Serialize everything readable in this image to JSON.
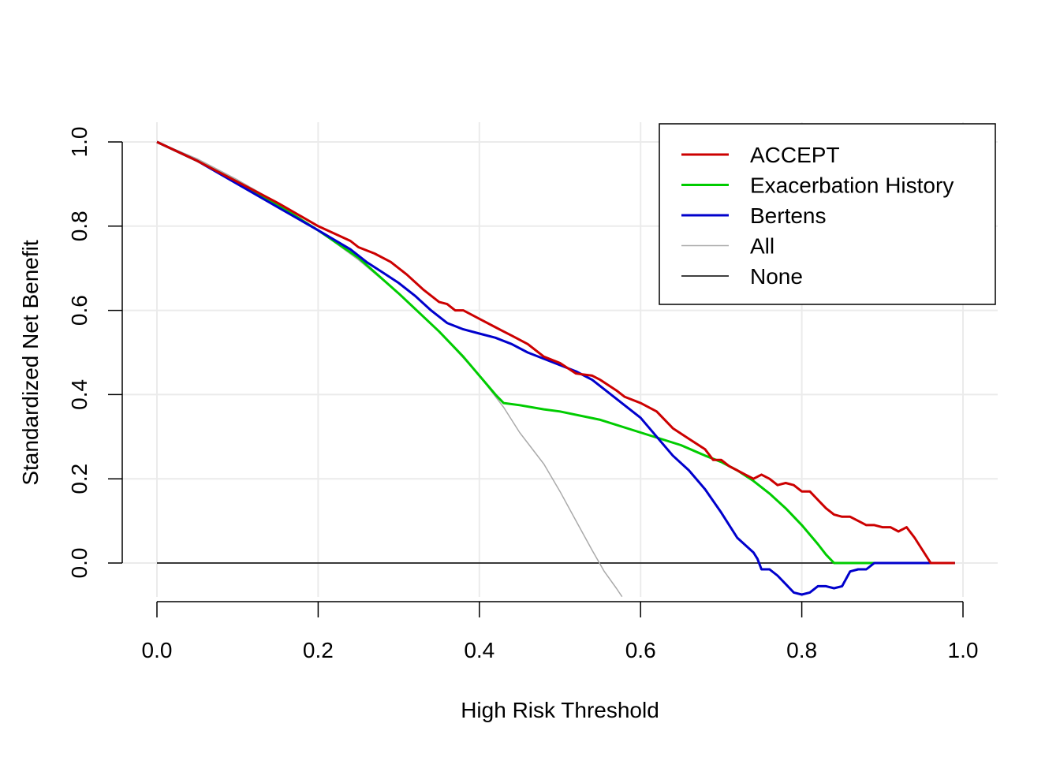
{
  "chart_data": {
    "type": "line",
    "title": "",
    "xlabel": "High Risk Threshold",
    "ylabel": "Standardized Net Benefit",
    "xlim": [
      0,
      1
    ],
    "ylim": [
      -0.08,
      1.0
    ],
    "x_ticks": [
      0.0,
      0.2,
      0.4,
      0.6,
      0.8,
      1.0
    ],
    "x_tick_labels": [
      "0.0",
      "0.2",
      "0.4",
      "0.6",
      "0.8",
      "1.0"
    ],
    "y_ticks": [
      0.0,
      0.2,
      0.4,
      0.6,
      0.8,
      1.0
    ],
    "y_tick_labels": [
      "0.0",
      "0.2",
      "0.4",
      "0.6",
      "0.8",
      "1.0"
    ],
    "grid": true,
    "legend_position": "top-right",
    "series": [
      {
        "name": "ACCEPT",
        "color": "#cc0000",
        "width": 3,
        "x": [
          0,
          0.05,
          0.1,
          0.15,
          0.2,
          0.24,
          0.25,
          0.27,
          0.29,
          0.31,
          0.33,
          0.35,
          0.36,
          0.37,
          0.38,
          0.39,
          0.4,
          0.42,
          0.44,
          0.46,
          0.48,
          0.5,
          0.52,
          0.54,
          0.55,
          0.57,
          0.58,
          0.6,
          0.62,
          0.64,
          0.66,
          0.68,
          0.69,
          0.7,
          0.71,
          0.72,
          0.73,
          0.74,
          0.75,
          0.76,
          0.77,
          0.78,
          0.79,
          0.8,
          0.81,
          0.82,
          0.83,
          0.84,
          0.85,
          0.86,
          0.87,
          0.88,
          0.89,
          0.9,
          0.91,
          0.92,
          0.93,
          0.94,
          0.95,
          0.96,
          0.97,
          0.98,
          0.99
        ],
        "y": [
          1.0,
          0.955,
          0.905,
          0.855,
          0.8,
          0.765,
          0.75,
          0.735,
          0.715,
          0.685,
          0.65,
          0.62,
          0.615,
          0.6,
          0.6,
          0.59,
          0.58,
          0.56,
          0.54,
          0.52,
          0.49,
          0.475,
          0.45,
          0.445,
          0.435,
          0.41,
          0.395,
          0.38,
          0.36,
          0.32,
          0.295,
          0.27,
          0.245,
          0.245,
          0.23,
          0.22,
          0.21,
          0.2,
          0.21,
          0.2,
          0.185,
          0.19,
          0.185,
          0.17,
          0.17,
          0.15,
          0.13,
          0.115,
          0.11,
          0.11,
          0.1,
          0.09,
          0.09,
          0.085,
          0.085,
          0.075,
          0.085,
          0.06,
          0.03,
          0.0,
          0.0,
          0.0,
          0.0
        ]
      },
      {
        "name": "Exacerbation History",
        "color": "#00cc00",
        "width": 3,
        "x": [
          0,
          0.05,
          0.1,
          0.15,
          0.2,
          0.25,
          0.3,
          0.35,
          0.38,
          0.4,
          0.42,
          0.43,
          0.45,
          0.48,
          0.5,
          0.55,
          0.6,
          0.65,
          0.68,
          0.7,
          0.72,
          0.74,
          0.76,
          0.78,
          0.8,
          0.82,
          0.83,
          0.84,
          0.85,
          0.88,
          0.9,
          0.95,
          0.99
        ],
        "y": [
          1.0,
          0.955,
          0.905,
          0.85,
          0.79,
          0.725,
          0.64,
          0.55,
          0.49,
          0.445,
          0.4,
          0.38,
          0.375,
          0.365,
          0.36,
          0.34,
          0.31,
          0.28,
          0.255,
          0.24,
          0.22,
          0.195,
          0.165,
          0.13,
          0.09,
          0.045,
          0.02,
          0.0,
          0.0,
          0.0,
          0.0,
          0.0,
          0.0
        ]
      },
      {
        "name": "Bertens",
        "color": "#0000cc",
        "width": 3,
        "x": [
          0,
          0.05,
          0.1,
          0.15,
          0.2,
          0.24,
          0.26,
          0.28,
          0.3,
          0.32,
          0.34,
          0.36,
          0.38,
          0.4,
          0.42,
          0.44,
          0.46,
          0.48,
          0.5,
          0.52,
          0.54,
          0.56,
          0.58,
          0.6,
          0.62,
          0.64,
          0.66,
          0.68,
          0.7,
          0.72,
          0.74,
          0.745,
          0.75,
          0.76,
          0.77,
          0.78,
          0.79,
          0.8,
          0.81,
          0.82,
          0.83,
          0.84,
          0.85,
          0.86,
          0.87,
          0.88,
          0.89,
          0.9,
          0.95,
          0.99
        ],
        "y": [
          1.0,
          0.955,
          0.9,
          0.845,
          0.79,
          0.745,
          0.715,
          0.69,
          0.665,
          0.635,
          0.6,
          0.57,
          0.555,
          0.545,
          0.535,
          0.52,
          0.5,
          0.485,
          0.47,
          0.455,
          0.435,
          0.405,
          0.375,
          0.345,
          0.3,
          0.255,
          0.22,
          0.175,
          0.12,
          0.06,
          0.025,
          0.01,
          -0.015,
          -0.015,
          -0.03,
          -0.05,
          -0.07,
          -0.075,
          -0.07,
          -0.055,
          -0.055,
          -0.06,
          -0.055,
          -0.02,
          -0.015,
          -0.015,
          0.0,
          0.0,
          0.0,
          0.0
        ]
      },
      {
        "name": "All",
        "color": "#aaaaaa",
        "width": 1.5,
        "x": [
          0,
          0.05,
          0.1,
          0.15,
          0.2,
          0.25,
          0.3,
          0.35,
          0.4,
          0.43,
          0.45,
          0.48,
          0.5,
          0.52,
          0.54,
          0.555,
          0.57,
          0.577
        ],
        "y": [
          1.0,
          0.96,
          0.91,
          0.855,
          0.79,
          0.72,
          0.64,
          0.55,
          0.445,
          0.37,
          0.31,
          0.235,
          0.17,
          0.1,
          0.03,
          -0.02,
          -0.06,
          -0.08
        ]
      },
      {
        "name": "None",
        "color": "#000000",
        "width": 1.5,
        "x": [
          0,
          0.99
        ],
        "y": [
          0,
          0
        ]
      }
    ]
  }
}
